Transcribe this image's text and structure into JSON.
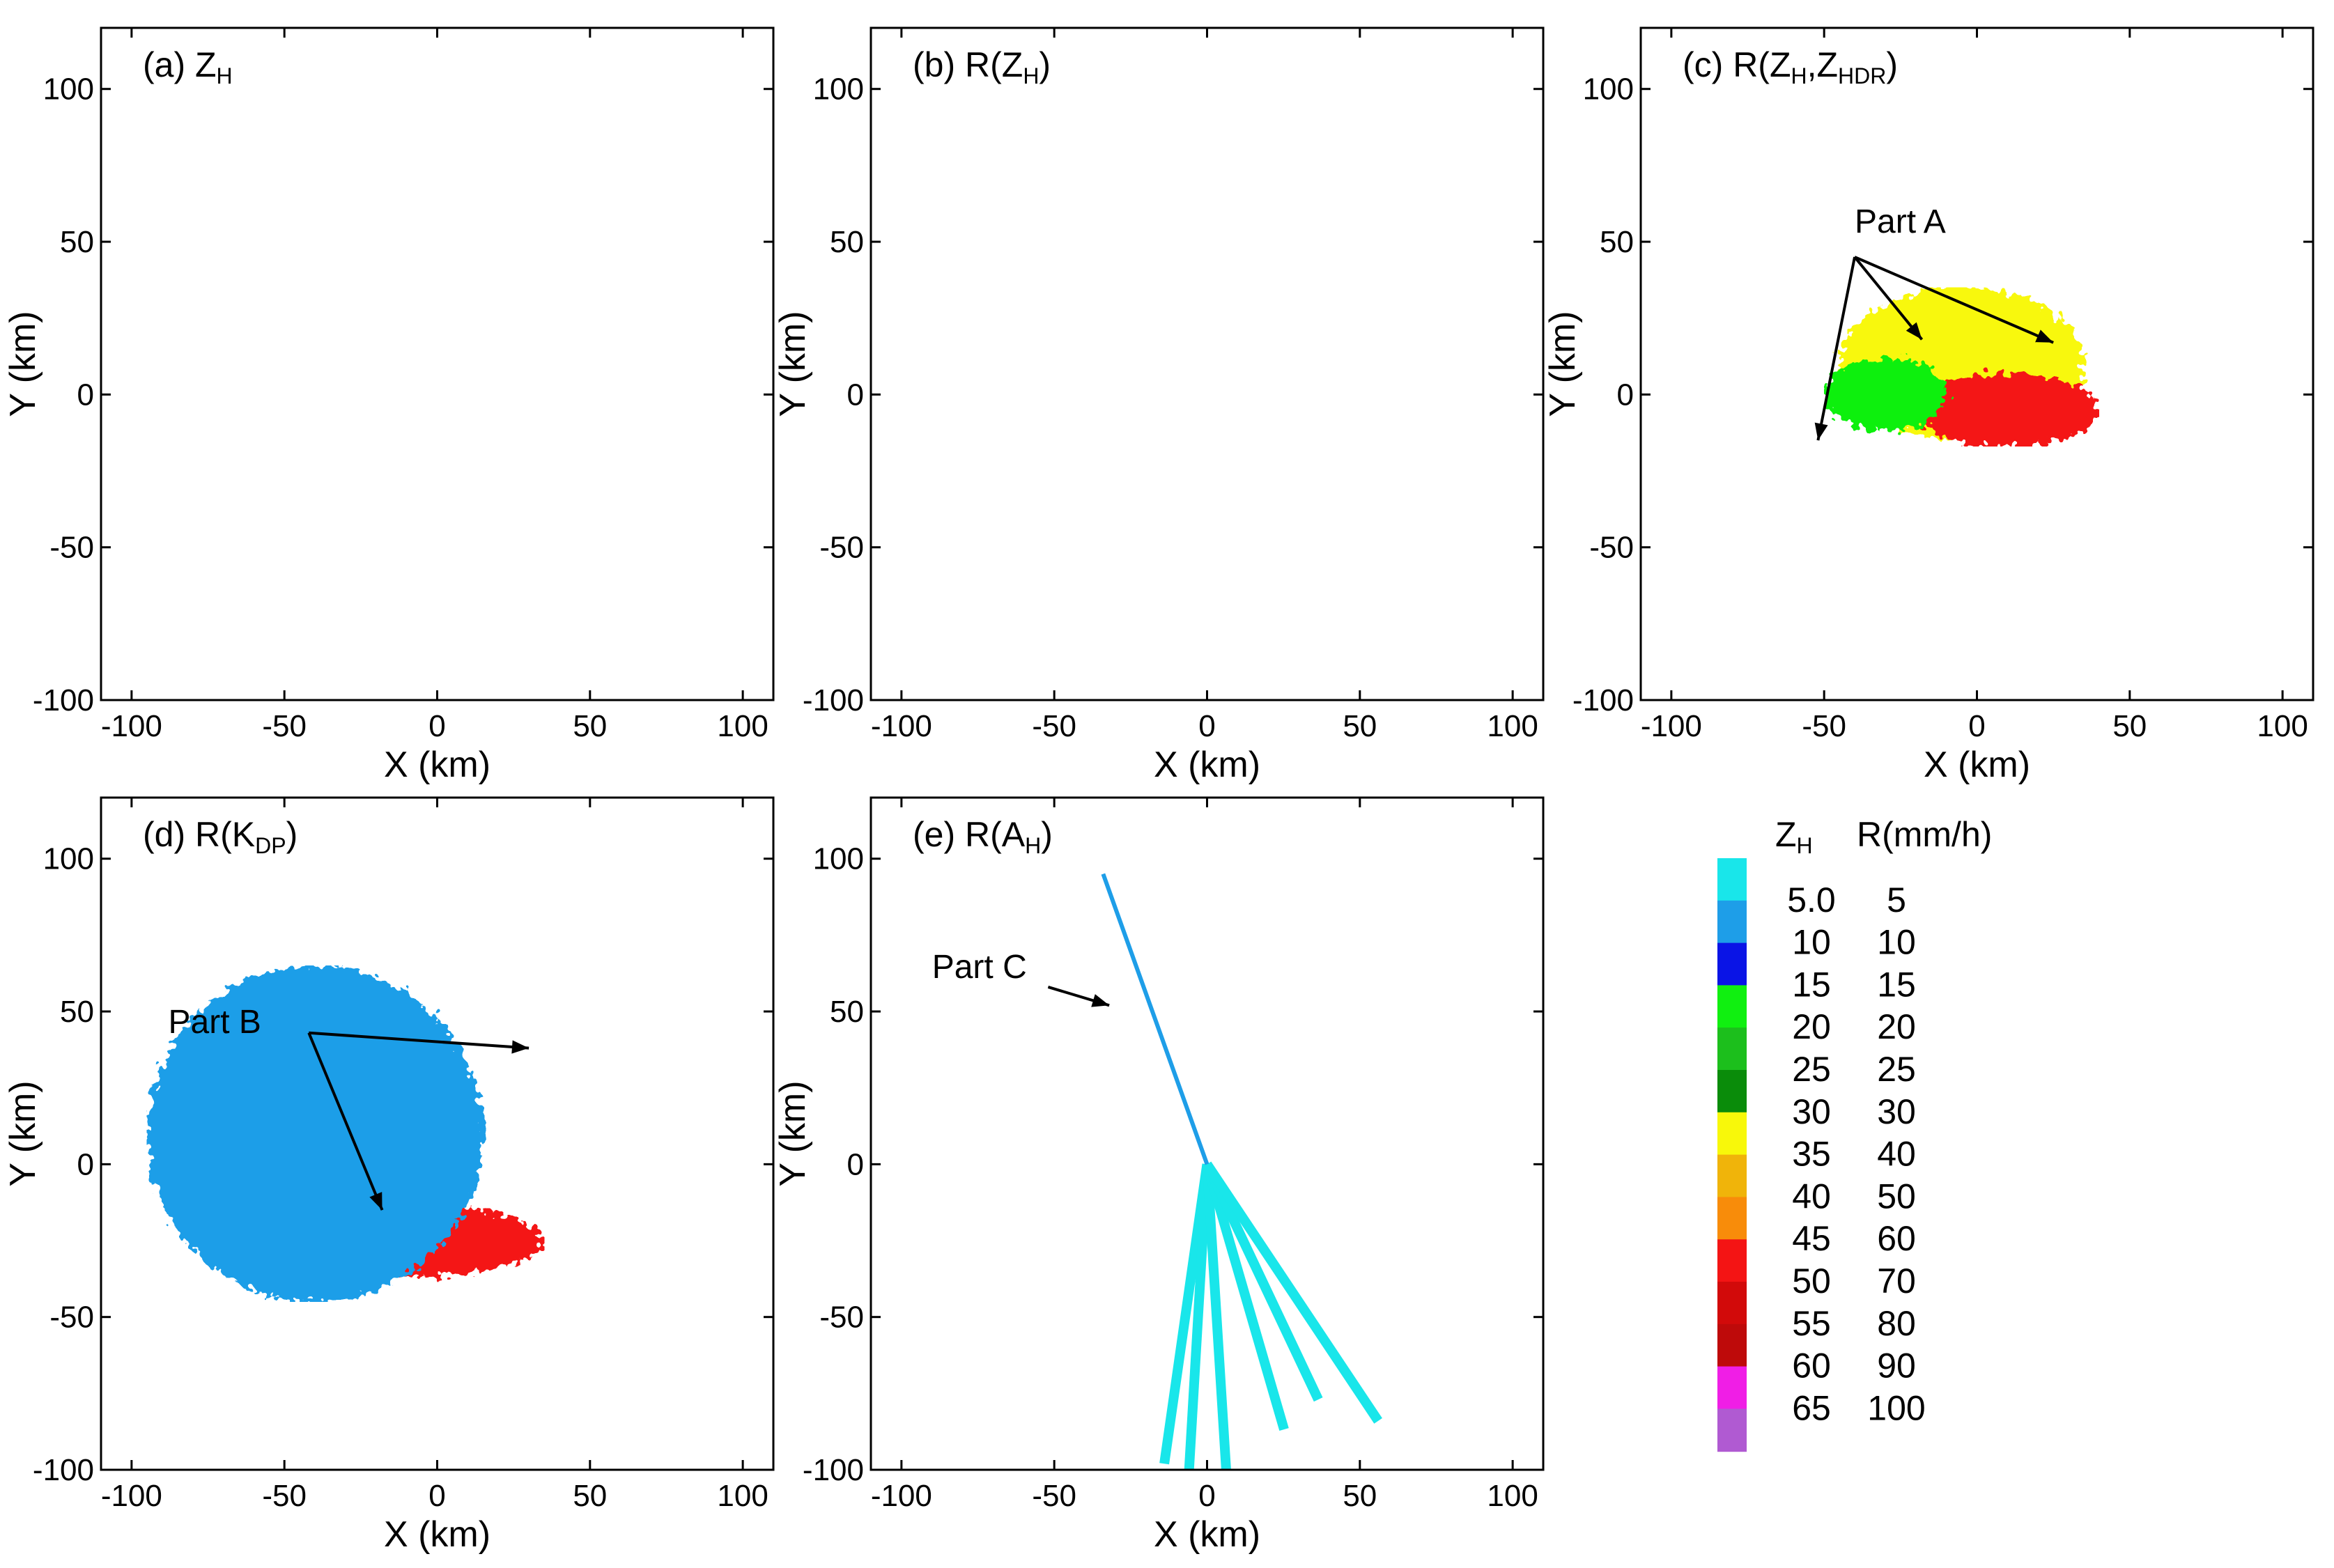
{
  "figure": {
    "type": "radar_ppi",
    "description_labels": {
      "x_axis_label": "X (km)",
      "y_axis_label": "Y (km)"
    }
  },
  "chart_data": [
    {
      "type": "heatmap",
      "panel_id": "a",
      "title_prefix": "(a) Z",
      "title_sub": "H",
      "title_suffix": "",
      "xlabel": "X (km)",
      "ylabel": "Y (km)",
      "xlim": [
        -110,
        110
      ],
      "ylim": [
        -100,
        120
      ],
      "xticks": [
        -100,
        -50,
        0,
        50,
        100
      ],
      "yticks": [
        -100,
        -50,
        0,
        50,
        100
      ],
      "annotations": []
    },
    {
      "type": "heatmap",
      "panel_id": "b",
      "title_prefix": "(b) R(Z",
      "title_sub": "H",
      "title_suffix": ")",
      "xlabel": "X (km)",
      "ylabel": "Y (km)",
      "xlim": [
        -110,
        110
      ],
      "ylim": [
        -100,
        120
      ],
      "xticks": [
        -100,
        -50,
        0,
        50,
        100
      ],
      "yticks": [
        -100,
        -50,
        0,
        50,
        100
      ],
      "annotations": []
    },
    {
      "type": "heatmap",
      "panel_id": "c",
      "title_prefix": "(c) R(Z",
      "title_sub": "H",
      "title_mid": ",Z",
      "title_sub2": "HDR",
      "title_suffix": ")",
      "xlabel": "X (km)",
      "ylabel": "Y (km)",
      "xlim": [
        -110,
        110
      ],
      "ylim": [
        -100,
        120
      ],
      "xticks": [
        -100,
        -50,
        0,
        50,
        100
      ],
      "yticks": [
        -100,
        -50,
        0,
        50,
        100
      ],
      "annotations": [
        {
          "label": "Part A",
          "text_at": [
            -40,
            53
          ],
          "arrow_from": [
            -40,
            45
          ],
          "arrows_to": [
            [
              -52,
              -15
            ],
            [
              -18,
              18
            ],
            [
              25,
              17
            ]
          ]
        }
      ]
    },
    {
      "type": "heatmap",
      "panel_id": "d",
      "title_prefix": "(d) R(K",
      "title_sub": "DP",
      "title_suffix": ")",
      "xlabel": "X (km)",
      "ylabel": "Y (km)",
      "xlim": [
        -110,
        110
      ],
      "ylim": [
        -100,
        120
      ],
      "xticks": [
        -100,
        -50,
        0,
        50,
        100
      ],
      "yticks": [
        -100,
        -50,
        0,
        50,
        100
      ],
      "annotations": [
        {
          "label": "Part B",
          "text_at": [
            -88,
            43
          ],
          "arrow_from": [
            -42,
            43
          ],
          "arrows_to": [
            [
              -18,
              -15
            ],
            [
              30,
              38
            ]
          ]
        }
      ]
    },
    {
      "type": "heatmap",
      "panel_id": "e",
      "title_prefix": "(e) R(A",
      "title_sub": "H",
      "title_suffix": ")",
      "xlabel": "X (km)",
      "ylabel": "Y (km)",
      "xlim": [
        -110,
        110
      ],
      "ylim": [
        -100,
        120
      ],
      "xticks": [
        -100,
        -50,
        0,
        50,
        100
      ],
      "yticks": [
        -100,
        -50,
        0,
        50,
        100
      ],
      "annotations": [
        {
          "label": "Part C",
          "text_at": [
            -90,
            61
          ],
          "arrow_from": [
            -52,
            58
          ],
          "arrows_to": [
            [
              -32,
              52
            ]
          ]
        }
      ]
    }
  ],
  "legend": {
    "header_zh_prefix": "Z",
    "header_zh_sub": "H",
    "header_r": "R(mm/h)",
    "colors": [
      "#19e6ea",
      "#1e9ee8",
      "#0a14e6",
      "#10f010",
      "#1cbf1c",
      "#0a8c0a",
      "#f8f80a",
      "#f0b40a",
      "#f88c0a",
      "#f41414",
      "#d20a0a",
      "#be0a0a",
      "#f01ee6",
      "#b05ad2"
    ],
    "zh_labels": [
      "5.0",
      "10",
      "15",
      "20",
      "25",
      "30",
      "35",
      "40",
      "45",
      "50",
      "55",
      "60",
      "65"
    ],
    "r_labels": [
      "5",
      "10",
      "15",
      "20",
      "25",
      "30",
      "40",
      "50",
      "60",
      "70",
      "80",
      "90",
      "100"
    ]
  }
}
